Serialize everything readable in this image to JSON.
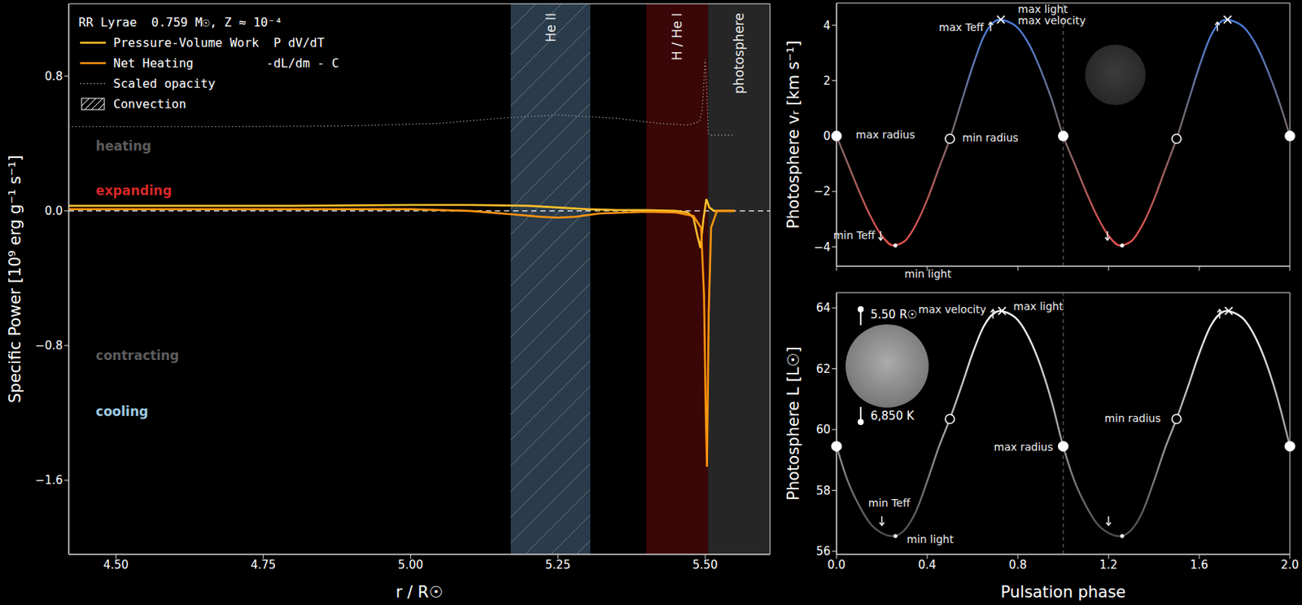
{
  "chart_data": [
    {
      "type": "line",
      "title": "RR Lyrae  0.759 M☉, Z ≈ 10⁻⁴",
      "x_label": "r / R☉",
      "y_label": "Specific Power [10⁹ erg g⁻¹ s⁻¹]",
      "xlim": [
        4.42,
        5.61
      ],
      "xticks": [
        {
          "value": 4.5,
          "label": "4.50"
        },
        {
          "value": 4.75,
          "label": "4.75"
        },
        {
          "value": 5.0,
          "label": "5.00"
        },
        {
          "value": 5.25,
          "label": "5.25"
        },
        {
          "value": 5.5,
          "label": "5.50"
        }
      ],
      "ylim": [
        -2.04,
        1.23
      ],
      "yticks": [
        {
          "value": -1.6,
          "label": "−1.6"
        },
        {
          "value": -0.8,
          "label": "−0.8"
        },
        {
          "value": 0,
          "label": "0.0"
        },
        {
          "value": 0.8,
          "label": "0.8"
        }
      ],
      "legend": "upper left",
      "series": [
        {
          "name": "Pressure-Volume Work  P dV/dT",
          "color": "#ffc02a",
          "line_style": "solid",
          "x": [
            4.42,
            4.6,
            4.8,
            5.0,
            5.1,
            5.2,
            5.25,
            5.3,
            5.35,
            5.4,
            5.45,
            5.47,
            5.48,
            5.487,
            5.492,
            5.497,
            5.502,
            5.507,
            5.515,
            5.53,
            5.55
          ],
          "values": [
            0.03,
            0.03,
            0.03,
            0.035,
            0.035,
            0.03,
            0.02,
            0.01,
            0.005,
            0.005,
            0.0,
            -0.01,
            -0.04,
            -0.15,
            -0.22,
            -0.05,
            0.07,
            0.02,
            0.0,
            0.0,
            0.0
          ]
        },
        {
          "name": "Net Heating          -dL/dm - C",
          "color": "#ff9410",
          "line_style": "solid",
          "x": [
            4.42,
            4.6,
            4.8,
            5.0,
            5.1,
            5.17,
            5.22,
            5.25,
            5.28,
            5.32,
            5.4,
            5.45,
            5.48,
            5.493,
            5.498,
            5.501,
            5.503,
            5.506,
            5.51,
            5.52,
            5.55
          ],
          "values": [
            0.01,
            0.01,
            0.01,
            0.01,
            0.0,
            -0.02,
            -0.035,
            -0.04,
            -0.035,
            -0.015,
            -0.005,
            -0.01,
            -0.03,
            -0.1,
            -0.5,
            -1.2,
            -1.52,
            -0.6,
            -0.1,
            0.0,
            0.0
          ]
        },
        {
          "name": "Scaled opacity",
          "color": "#9a9a9a",
          "line_style": "dotted",
          "x": [
            4.42,
            4.7,
            4.9,
            5.05,
            5.15,
            5.25,
            5.35,
            5.42,
            5.47,
            5.49,
            5.495,
            5.5,
            5.503,
            5.505,
            5.51,
            5.55
          ],
          "values": [
            0.5,
            0.5,
            0.505,
            0.52,
            0.55,
            0.57,
            0.55,
            0.52,
            0.51,
            0.53,
            0.6,
            0.9,
            0.7,
            0.46,
            0.45,
            0.45
          ]
        }
      ],
      "regions": [
        {
          "label": "He II",
          "name": "Convection",
          "x": [
            5.17,
            5.305
          ],
          "color": "#2a3b4b",
          "marker": "hatch"
        },
        {
          "label": "H / He I",
          "x": [
            5.4,
            5.505
          ],
          "color": "#3a0606"
        },
        {
          "label": "photosphere",
          "x": [
            5.505,
            5.61
          ],
          "color": "#262626"
        }
      ],
      "hlines": [
        {
          "y": 0,
          "color": "#ffffff",
          "line_style": "dashed"
        }
      ],
      "annotations": [
        {
          "text": "heating",
          "x": 4.466,
          "y": 0.385,
          "color": "#5c5c5c"
        },
        {
          "text": "expanding",
          "x": 4.466,
          "y": 0.12,
          "color": "#d62728"
        },
        {
          "text": "contracting",
          "x": 4.466,
          "y": -0.86,
          "color": "#5c5c5c"
        },
        {
          "text": "cooling",
          "x": 4.466,
          "y": -1.19,
          "color": "#9ecae1"
        }
      ]
    },
    {
      "type": "line",
      "y_label": "Photosphere vᵣ [km s⁻¹]",
      "tick_labels": "y",
      "xlim": [
        0,
        2
      ],
      "xticks": [
        0,
        0.4,
        0.8,
        1.2,
        1.6,
        2
      ],
      "ylim": [
        -4.7,
        4.8
      ],
      "yticks": [
        {
          "value": -4,
          "label": "−4"
        },
        {
          "value": -2,
          "label": "−2"
        },
        0,
        2,
        4
      ],
      "vlines": [
        1.0
      ],
      "series": [
        {
          "x": [
            0,
            0.05,
            0.1,
            0.15,
            0.2,
            0.25,
            0.3,
            0.35,
            0.4,
            0.45,
            0.5,
            0.55,
            0.6,
            0.65,
            0.7,
            0.72,
            0.75,
            0.8,
            0.85,
            0.9,
            0.95,
            1.0,
            1.05,
            1.1,
            1.15,
            1.2,
            1.25,
            1.3,
            1.35,
            1.4,
            1.45,
            1.5,
            1.55,
            1.6,
            1.65,
            1.7,
            1.72,
            1.75,
            1.8,
            1.85,
            1.9,
            1.95,
            2.0
          ],
          "values": [
            0.0,
            -1.0,
            -2.0,
            -2.9,
            -3.6,
            -3.95,
            -3.8,
            -3.2,
            -2.3,
            -1.2,
            -0.1,
            1.2,
            2.5,
            3.6,
            4.15,
            4.2,
            4.15,
            3.9,
            3.3,
            2.4,
            1.3,
            0.0,
            -1.0,
            -2.0,
            -2.9,
            -3.6,
            -3.95,
            -3.8,
            -3.2,
            -2.3,
            -1.2,
            -0.1,
            1.2,
            2.5,
            3.6,
            4.15,
            4.2,
            4.15,
            3.9,
            3.3,
            2.4,
            1.3,
            0.0
          ]
        }
      ],
      "markers": [
        {
          "x": 0,
          "y": 0,
          "marker": "filled_circle"
        },
        {
          "x": 1,
          "y": 0,
          "marker": "filled_circle"
        },
        {
          "x": 2,
          "y": 0,
          "marker": "filled_circle"
        },
        {
          "x": 0.5,
          "y": -0.1,
          "marker": "open_circle"
        },
        {
          "x": 1.5,
          "y": -0.1,
          "marker": "open_circle"
        },
        {
          "x": 0.725,
          "y": 4.2,
          "marker": "x"
        },
        {
          "x": 1.725,
          "y": 4.2,
          "marker": "x"
        },
        {
          "x": 0.68,
          "y": 3.95,
          "marker": "arrow_up"
        },
        {
          "x": 1.68,
          "y": 3.95,
          "marker": "arrow_up"
        },
        {
          "x": 0.195,
          "y": -3.6,
          "marker": "arrow_down"
        },
        {
          "x": 1.195,
          "y": -3.6,
          "marker": "arrow_down"
        },
        {
          "x": 0.26,
          "y": -3.95,
          "marker": "dot"
        },
        {
          "x": 1.26,
          "y": -3.95,
          "marker": "dot"
        }
      ],
      "annotations": [
        {
          "text": "max radius",
          "x": 0.085,
          "y": 0.05
        },
        {
          "text": "min radius",
          "x": 0.555,
          "y": -0.05
        },
        {
          "text": "max Teff",
          "x": 0.65,
          "y": 3.94
        },
        {
          "text": "max light",
          "x": 0.8,
          "y": 4.57
        },
        {
          "text": "max velocity",
          "x": 0.8,
          "y": 4.18
        },
        {
          "text": "min Teff",
          "x": 0.17,
          "y": -3.58
        },
        {
          "text": "min light",
          "x": 0.3,
          "y": -4.96
        }
      ]
    },
    {
      "type": "line",
      "y_label": "Photosphere L [L☉]",
      "x_label": "Pulsation phase",
      "xlim": [
        0,
        2
      ],
      "xticks": [
        {
          "value": 0,
          "label": "0.0"
        },
        {
          "value": 0.4,
          "label": "0.4"
        },
        {
          "value": 0.8,
          "label": "0.8"
        },
        {
          "value": 1.2,
          "label": "1.2"
        },
        {
          "value": 1.6,
          "label": "1.6"
        },
        {
          "value": 2,
          "label": "2.0"
        }
      ],
      "ylim": [
        55.9,
        64.5
      ],
      "yticks": [
        56,
        58,
        60,
        62,
        64
      ],
      "vlines": [
        1.0
      ],
      "series": [
        {
          "x": [
            0,
            0.05,
            0.1,
            0.15,
            0.2,
            0.25,
            0.3,
            0.35,
            0.4,
            0.45,
            0.5,
            0.55,
            0.6,
            0.65,
            0.7,
            0.72,
            0.75,
            0.8,
            0.85,
            0.9,
            0.95,
            1.0,
            1.05,
            1.1,
            1.15,
            1.2,
            1.25,
            1.3,
            1.35,
            1.4,
            1.45,
            1.5,
            1.55,
            1.6,
            1.65,
            1.7,
            1.72,
            1.75,
            1.8,
            1.85,
            1.9,
            1.95,
            2.0
          ],
          "values": [
            59.45,
            58.3,
            57.5,
            56.9,
            56.6,
            56.5,
            56.7,
            57.3,
            58.3,
            59.4,
            60.35,
            61.4,
            62.5,
            63.4,
            63.85,
            63.9,
            63.85,
            63.6,
            63.0,
            62.1,
            60.9,
            59.45,
            58.3,
            57.5,
            56.9,
            56.6,
            56.5,
            56.7,
            57.3,
            58.3,
            59.4,
            60.35,
            61.4,
            62.5,
            63.4,
            63.85,
            63.9,
            63.85,
            63.6,
            63.0,
            62.1,
            60.9,
            59.45
          ]
        }
      ],
      "markers": [
        {
          "x": 0,
          "y": 59.45,
          "marker": "filled_circle"
        },
        {
          "x": 1,
          "y": 59.45,
          "marker": "filled_circle"
        },
        {
          "x": 2,
          "y": 59.45,
          "marker": "filled_circle"
        },
        {
          "x": 0.5,
          "y": 60.35,
          "marker": "open_circle"
        },
        {
          "x": 1.5,
          "y": 60.35,
          "marker": "open_circle"
        },
        {
          "x": 0.73,
          "y": 63.9,
          "marker": "x"
        },
        {
          "x": 1.73,
          "y": 63.9,
          "marker": "x"
        },
        {
          "x": 0.69,
          "y": 63.8,
          "marker": "arrow_up"
        },
        {
          "x": 1.69,
          "y": 63.8,
          "marker": "arrow_up"
        },
        {
          "x": 0.2,
          "y": 57.0,
          "marker": "arrow_down"
        },
        {
          "x": 1.2,
          "y": 57.0,
          "marker": "arrow_down"
        },
        {
          "x": 0.26,
          "y": 56.5,
          "marker": "dot"
        },
        {
          "x": 1.26,
          "y": 56.5,
          "marker": "dot"
        }
      ],
      "annotations": [
        {
          "text": "max light",
          "x": 0.78,
          "y": 64.05
        },
        {
          "text": "max velocity",
          "x": 0.66,
          "y": 63.95
        },
        {
          "text": "min Teff",
          "x": 0.14,
          "y": 57.6
        },
        {
          "text": "min light",
          "x": 0.31,
          "y": 56.4
        },
        {
          "text": "min radius",
          "x": 1.43,
          "y": 60.37
        },
        {
          "text": "max radius",
          "x": 0.955,
          "y": 59.44
        }
      ],
      "star": {
        "radius_label": "5.50 R☉",
        "teff_label": "6,850 K"
      }
    }
  ]
}
